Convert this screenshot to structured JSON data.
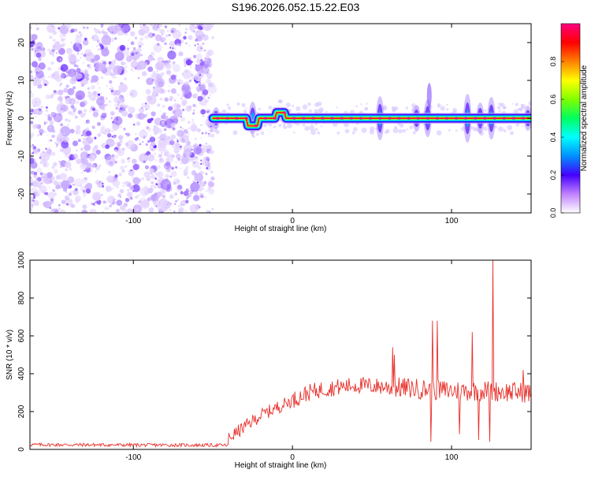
{
  "title": "S196.2026.052.15.22.E03",
  "chart_data": [
    {
      "type": "heatmap",
      "xlabel": "Height of straight line (km)",
      "ylabel": "Frequency (Hz)",
      "xlim": [
        -165,
        150
      ],
      "ylim": [
        -25,
        25
      ],
      "xticks": [
        -100,
        0,
        100
      ],
      "yticks": [
        -20,
        -10,
        0,
        10,
        20
      ],
      "noise_region_x": [
        -165,
        -50
      ],
      "ridge": {
        "x_start": -50,
        "x_end": 150,
        "frequency_hz": 0,
        "offsets": [
          [
            -28,
            -2
          ],
          [
            -22,
            -2
          ],
          [
            -10,
            1.5
          ],
          [
            -5,
            1.5
          ]
        ],
        "bursts_x": [
          -48,
          -25,
          55,
          78,
          85,
          110,
          118,
          125,
          148
        ]
      },
      "colorbar": {
        "label": "Normalized spectral amplitude",
        "range": [
          0,
          1
        ],
        "ticks": [
          "0.0",
          "0.2",
          "0.4",
          "0.6",
          "0.8"
        ],
        "colors": [
          "#ffffff",
          "#c080ff",
          "#4400ff",
          "#0090ff",
          "#00ffff",
          "#00ff60",
          "#80ff00",
          "#ffff00",
          "#ff8000",
          "#ff0000",
          "#ff0080"
        ]
      }
    },
    {
      "type": "line",
      "xlabel": "Height of straight line (km)",
      "ylabel": "SNR (10 * v/v)",
      "xlim": [
        -165,
        150
      ],
      "ylim": [
        0,
        1000
      ],
      "xticks": [
        -100,
        0,
        100
      ],
      "yticks": [
        0,
        200,
        400,
        600,
        800,
        1000
      ],
      "color": "#e8302a",
      "baseline": [
        [
          -165,
          25
        ],
        [
          -40,
          22
        ]
      ],
      "trend": [
        [
          -40,
          60
        ],
        [
          -30,
          120
        ],
        [
          -20,
          180
        ],
        [
          -10,
          220
        ],
        [
          0,
          260
        ],
        [
          10,
          300
        ],
        [
          20,
          320
        ],
        [
          30,
          330
        ],
        [
          40,
          340
        ],
        [
          60,
          330
        ],
        [
          80,
          320
        ],
        [
          100,
          310
        ],
        [
          120,
          310
        ],
        [
          150,
          300
        ]
      ],
      "spikes": [
        {
          "x": 63,
          "y": 540
        },
        {
          "x": 64,
          "y": 500
        },
        {
          "x": 88,
          "y": 680
        },
        {
          "x": 91,
          "y": 680
        },
        {
          "x": 87,
          "y": 40
        },
        {
          "x": 105,
          "y": 80
        },
        {
          "x": 113,
          "y": 620
        },
        {
          "x": 117,
          "y": 50
        },
        {
          "x": 126,
          "y": 1000
        },
        {
          "x": 124,
          "y": 40
        },
        {
          "x": 145,
          "y": 420
        }
      ]
    }
  ]
}
